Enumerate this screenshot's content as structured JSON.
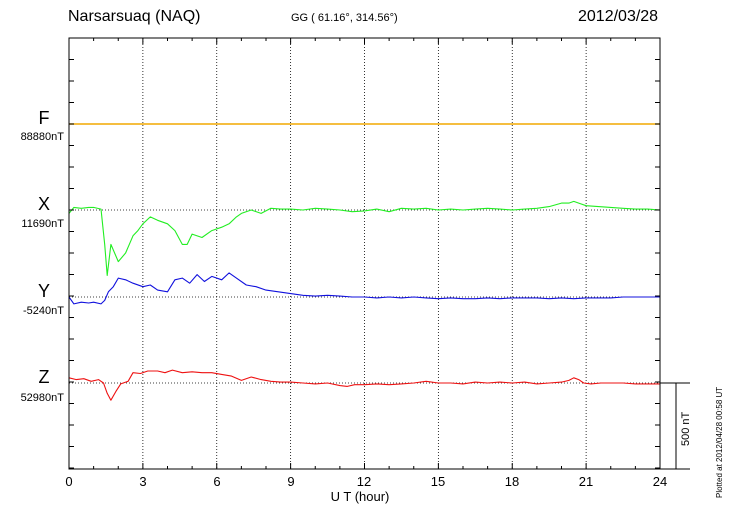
{
  "header": {
    "station": "Narsarsuaq (NAQ)",
    "coords": "GG ( 61.16°, 314.56°)",
    "date": "2012/03/28"
  },
  "components": [
    {
      "key": "F",
      "label": "F",
      "baseline": "88880nT",
      "color": "#f2a900"
    },
    {
      "key": "X",
      "label": "X",
      "baseline": "11690nT",
      "color": "#22ee22"
    },
    {
      "key": "Y",
      "label": "Y",
      "baseline": "-5240nT",
      "color": "#1111dd"
    },
    {
      "key": "Z",
      "label": "Z",
      "baseline": "52980nT",
      "color": "#ee1111"
    }
  ],
  "scale_bar_label": "500 nT",
  "plotted_note": "Plotted at 2012/04/28 00:58 UT",
  "chart_data": {
    "type": "line",
    "title": "Narsarsuaq (NAQ)",
    "xlabel": "U T (hour)",
    "ylabel": "",
    "xlim": [
      0,
      24
    ],
    "x_ticks": [
      "0",
      "3",
      "6",
      "9",
      "12",
      "15",
      "18",
      "21",
      "24"
    ],
    "scale_nT": 500,
    "grid": true,
    "series": [
      {
        "name": "F",
        "baseline_nT": 88880,
        "x": [
          0,
          24
        ],
        "values": [
          0,
          0
        ]
      },
      {
        "name": "X",
        "baseline_nT": 11690,
        "x": [
          0,
          0.2,
          0.5,
          0.8,
          1.0,
          1.3,
          1.45,
          1.55,
          1.7,
          2.0,
          2.3,
          2.6,
          2.8,
          3.0,
          3.3,
          3.6,
          4.0,
          4.3,
          4.6,
          4.8,
          5.0,
          5.4,
          5.8,
          6.2,
          6.5,
          6.8,
          7.0,
          7.4,
          7.8,
          8.2,
          8.6,
          9.0,
          9.5,
          10.0,
          10.5,
          11.0,
          11.5,
          12.0,
          12.5,
          13.0,
          13.5,
          14.0,
          14.5,
          15.0,
          15.5,
          16.0,
          16.5,
          17.0,
          17.5,
          18.0,
          18.5,
          19.0,
          19.5,
          20.0,
          20.3,
          20.5,
          20.7,
          21.0,
          21.5,
          22.0,
          22.5,
          23.0,
          23.5,
          24.0
        ],
        "values": [
          -20,
          15,
          10,
          15,
          15,
          5,
          -200,
          -380,
          -200,
          -300,
          -250,
          -150,
          -120,
          -80,
          -40,
          -60,
          -80,
          -120,
          -200,
          -200,
          -140,
          -160,
          -120,
          -100,
          -80,
          -40,
          -20,
          0,
          -20,
          10,
          5,
          5,
          0,
          10,
          5,
          0,
          -10,
          -5,
          5,
          -10,
          10,
          5,
          10,
          0,
          5,
          0,
          5,
          10,
          5,
          0,
          5,
          10,
          20,
          40,
          40,
          50,
          40,
          25,
          20,
          15,
          10,
          5,
          5,
          0
        ]
      },
      {
        "name": "Y",
        "baseline_nT": -5240,
        "x": [
          0,
          0.2,
          0.5,
          0.8,
          1.0,
          1.3,
          1.45,
          1.6,
          1.8,
          2.0,
          2.3,
          2.6,
          3.0,
          3.3,
          3.6,
          4.0,
          4.3,
          4.6,
          4.9,
          5.2,
          5.5,
          5.8,
          6.2,
          6.5,
          6.8,
          7.2,
          7.6,
          8.0,
          8.5,
          9.0,
          9.5,
          10.0,
          10.5,
          11.0,
          11.5,
          12.0,
          12.5,
          13.0,
          13.5,
          14.0,
          14.5,
          15.0,
          15.5,
          16.0,
          16.5,
          17.0,
          17.5,
          18.0,
          18.5,
          19.0,
          19.5,
          20.0,
          20.5,
          21.0,
          21.5,
          22.0,
          22.5,
          23.0,
          23.5,
          24.0
        ],
        "values": [
          0,
          -40,
          -30,
          -35,
          -30,
          -40,
          -20,
          30,
          60,
          110,
          100,
          80,
          60,
          70,
          40,
          30,
          100,
          110,
          80,
          130,
          90,
          120,
          100,
          140,
          110,
          70,
          60,
          40,
          30,
          20,
          10,
          5,
          10,
          5,
          0,
          0,
          -5,
          0,
          -5,
          0,
          -5,
          -10,
          -5,
          -10,
          -10,
          -5,
          -10,
          -5,
          -5,
          -5,
          -10,
          -5,
          -10,
          -5,
          -5,
          -5,
          0,
          0,
          0,
          0
        ]
      },
      {
        "name": "Z",
        "baseline_nT": 52980,
        "x": [
          0,
          0.3,
          0.6,
          0.9,
          1.2,
          1.4,
          1.55,
          1.7,
          1.9,
          2.1,
          2.4,
          2.6,
          2.9,
          3.2,
          3.6,
          3.9,
          4.2,
          4.6,
          5.0,
          5.4,
          5.8,
          6.2,
          6.6,
          7.0,
          7.4,
          7.8,
          8.2,
          8.6,
          9.0,
          9.5,
          10.0,
          10.5,
          11.0,
          11.3,
          11.6,
          12.0,
          12.5,
          13.0,
          13.5,
          14.0,
          14.5,
          15.0,
          15.5,
          16.0,
          16.5,
          17.0,
          17.5,
          18.0,
          18.5,
          19.0,
          19.5,
          20.0,
          20.3,
          20.5,
          20.7,
          20.9,
          21.2,
          21.6,
          22.0,
          22.5,
          23.0,
          23.5,
          24.0
        ],
        "values": [
          30,
          20,
          25,
          10,
          20,
          0,
          -60,
          -100,
          -50,
          -5,
          10,
          60,
          55,
          70,
          70,
          60,
          75,
          60,
          65,
          60,
          60,
          50,
          40,
          15,
          35,
          20,
          10,
          5,
          5,
          0,
          -5,
          0,
          -15,
          -20,
          -10,
          -10,
          -5,
          -10,
          -5,
          0,
          10,
          0,
          0,
          -5,
          5,
          0,
          5,
          0,
          5,
          -5,
          0,
          5,
          15,
          30,
          20,
          0,
          -5,
          0,
          0,
          0,
          -5,
          -5,
          -5
        ]
      }
    ]
  }
}
